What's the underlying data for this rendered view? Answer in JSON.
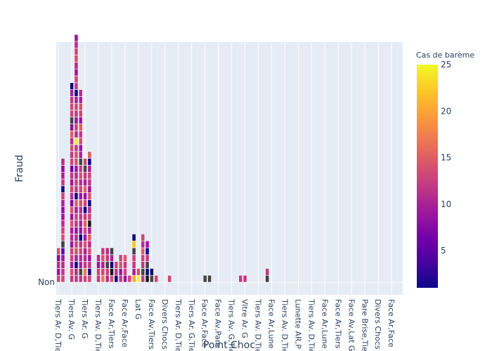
{
  "chart_data": {
    "type": "bar",
    "barmode": "stack",
    "title": "",
    "xlabel": "Point Choc",
    "ylabel": "Fraud",
    "y_tick_labels": [
      "Non"
    ],
    "colorbar": {
      "title": "Cas de barème",
      "range": [
        1,
        25
      ],
      "ticks": [
        5,
        10,
        15,
        20,
        25
      ],
      "colorscale": [
        "#0d0887",
        "#46039f",
        "#7201a8",
        "#9c179e",
        "#bd3786",
        "#d8576b",
        "#ed7953",
        "#fb9f3a",
        "#fdca26",
        "#f0f921"
      ]
    },
    "grid": true,
    "categories": [
      "Tiers Ar. D,Tiers",
      "Tiers Av. G",
      "Tiers Ar. G",
      "Tiers Av. D,Tiers",
      "Face Ar,Tiers",
      "Face Ar,Face",
      "Lat G",
      "Face Av,Tiers",
      "Divers Chocs",
      "Tiers Ar. D,Tiers",
      "Tiers Ar. G,Tiers",
      "Face Ar,Face",
      "Face Av,Pare",
      "Tiers Av. G,Tiers",
      "Vitre Ar. G",
      "Tiers Av. D,Tiers",
      "Face Ar,Lunette",
      "Tiers Av. D,Tiers",
      "Lunette AR,Pare",
      "Tiers Av. D,Tiers",
      "Face Ar,Lunette",
      "Face Ar,Tiers",
      "Face Av,Lat G",
      "Pare Brise,Tiers",
      "Divers Chocs",
      "Face Ar,Face"
    ],
    "x_tick_labels": [
      "Tiers Ar. D,Tie",
      "Tiers Av. G",
      "Tiers Ar. G",
      "Tiers Av. D,Tie",
      "Face Ar,Tiers",
      "Face Ar,Face",
      "Lat G",
      "Face Av,Tiers",
      "Divers Chocs",
      "Tiers Ar. D,Tie",
      "Tiers Ar. G,Tie",
      "Face Ar,Face",
      "Face Av,Pare",
      "Tiers Av. G,Tie",
      "Vitre Ar. G",
      "Tiers Av. D,Tie",
      "Face Ar,Lune",
      "Tiers Av. D,Tie",
      "Lunette AR,P",
      "Tiers Av. D,Tie",
      "Face Ar,Lune",
      "Face Ar,Tiers",
      "Face Av,Lat G",
      "Pare Brise,Tie",
      "Divers Chocs",
      "Face Ar,Face"
    ],
    "x_tick_indices": [
      0,
      3,
      6,
      9,
      12,
      15,
      18,
      21,
      24,
      27,
      30,
      33,
      36,
      39,
      42,
      45,
      48,
      51,
      54,
      57,
      60,
      63,
      66,
      69,
      72,
      75
    ],
    "num_x_slots": 78,
    "stacks": [
      [
        13,
        9,
        11,
        8,
        14
      ],
      [
        13,
        12,
        11,
        9,
        5,
        3,
        14,
        13,
        11,
        9,
        8,
        10,
        13,
        1,
        12,
        10,
        8,
        11
      ],
      [],
      [
        12,
        14,
        10,
        13,
        13,
        9,
        11,
        10,
        14,
        9,
        14,
        7,
        11,
        13,
        9,
        12,
        6,
        13,
        12,
        14,
        11,
        15,
        8,
        3,
        13,
        13,
        12,
        10,
        1
      ],
      [
        12,
        11,
        1,
        10,
        14,
        13,
        11,
        9,
        12,
        13,
        10,
        15,
        1,
        12,
        13,
        11,
        9,
        14,
        14,
        12,
        24,
        11,
        13,
        9,
        12,
        13,
        10,
        1,
        12,
        13,
        9,
        11,
        14,
        13,
        11,
        9
      ],
      [
        12,
        3,
        10,
        11,
        13,
        12,
        1,
        9,
        10,
        12,
        11,
        14,
        9,
        13,
        11,
        14,
        12,
        3,
        10,
        9,
        14,
        12,
        15,
        9,
        13,
        14,
        10,
        11
      ],
      [
        13,
        17,
        12,
        11,
        10,
        14,
        9,
        13,
        15,
        12,
        1,
        13,
        9,
        15,
        10,
        12,
        3,
        13
      ],
      [
        13,
        1,
        12,
        9,
        14,
        11,
        15,
        10,
        2,
        13,
        11,
        1,
        14,
        9,
        12,
        13,
        10,
        1,
        15
      ],
      [],
      [
        12,
        13,
        9,
        11
      ],
      [
        17,
        13,
        10,
        14,
        12
      ],
      [
        11,
        13,
        3,
        12,
        11
      ],
      [
        14,
        2,
        1,
        10,
        3
      ],
      [
        1,
        12,
        13
      ],
      [
        12,
        9,
        14,
        13
      ],
      [
        9,
        13,
        12,
        14
      ],
      [
        13
      ],
      [
        20,
        10,
        12,
        13,
        3,
        22,
        1
      ],
      [
        25,
        14
      ],
      [
        12,
        3,
        12,
        13,
        15,
        11,
        13
      ],
      [
        2,
        1,
        3,
        12,
        1,
        9
      ],
      [
        3,
        1
      ],
      [
        13
      ],
      [],
      [],
      [
        13
      ],
      [],
      [],
      [],
      [],
      [],
      [],
      [],
      [
        3
      ],
      [
        3
      ],
      [],
      [],
      [],
      [],
      [],
      [],
      [
        12
      ],
      [
        12
      ],
      [],
      [],
      [],
      [],
      [
        3,
        12
      ],
      [],
      [],
      [],
      [],
      [],
      [],
      [],
      [],
      [],
      [],
      [],
      [],
      [],
      [],
      [],
      [],
      [],
      [],
      [],
      [],
      [],
      [],
      [],
      [],
      [],
      [],
      [],
      [],
      [],
      []
    ]
  }
}
